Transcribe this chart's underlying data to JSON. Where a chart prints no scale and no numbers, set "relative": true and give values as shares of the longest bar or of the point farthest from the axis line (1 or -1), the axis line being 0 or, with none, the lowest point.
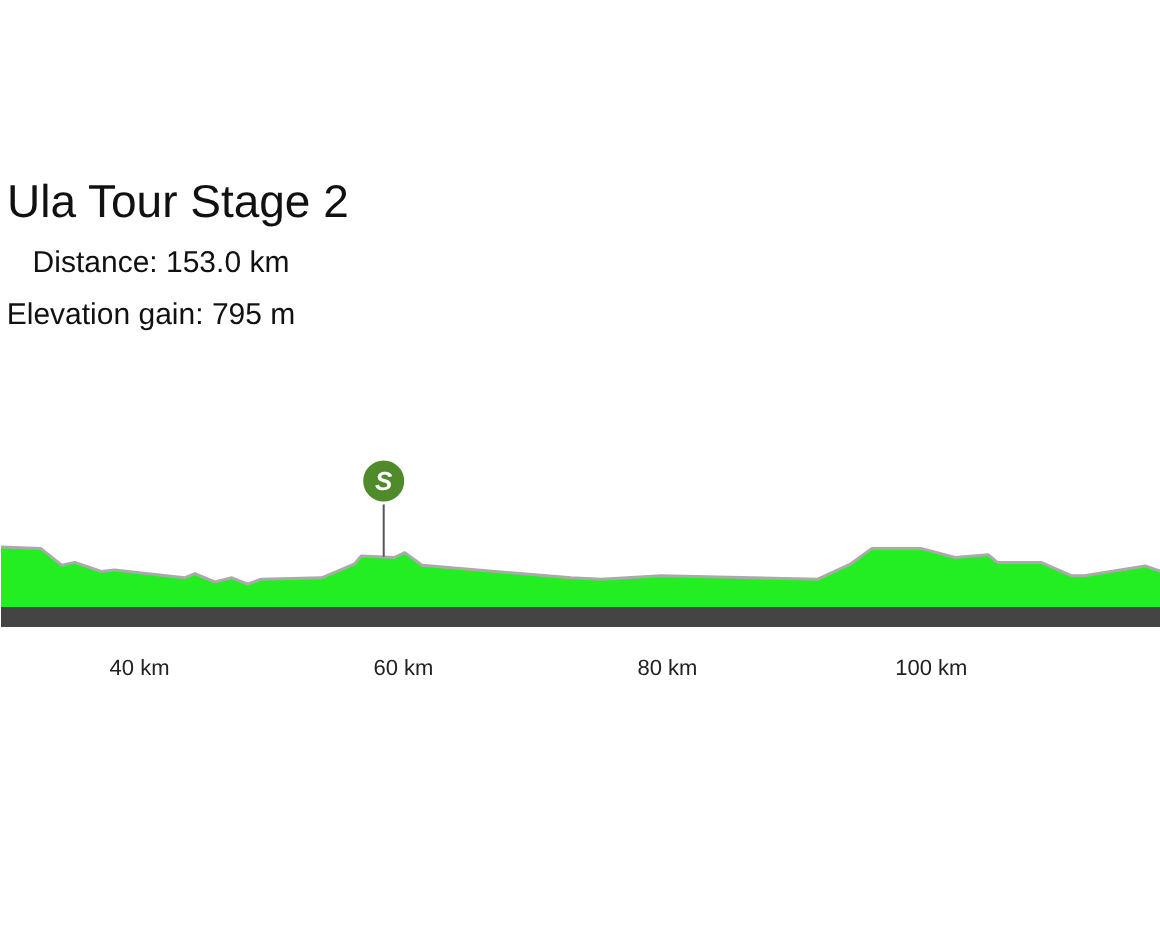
{
  "chart_data": {
    "type": "area",
    "title": "Ula Tour Stage 2",
    "subtitle": "Distance: 153.0 km",
    "annotations": [
      "Elevation gain: 795 m",
      {
        "text": "S",
        "x": 58.5,
        "y": 0.86
      }
    ],
    "relative": true,
    "x": [
      29.5,
      32.5,
      34.1,
      35.1,
      37.1,
      38.1,
      43.4,
      44.2,
      45.7,
      47.0,
      48.2,
      49.2,
      53.8,
      56.3,
      56.8,
      59.3,
      60.1,
      61.4,
      72.7,
      75.0,
      79.5,
      91.4,
      93.9,
      95.5,
      99.2,
      101.8,
      104.3,
      105.0,
      108.3,
      110.6,
      111.6,
      116.2,
      117.4
    ],
    "series": [
      {
        "color": "#22ee22",
        "values": [
          1.0,
          0.98,
          0.74,
          0.78,
          0.65,
          0.67,
          0.56,
          0.62,
          0.5,
          0.56,
          0.47,
          0.54,
          0.56,
          0.76,
          0.87,
          0.85,
          0.92,
          0.74,
          0.56,
          0.54,
          0.59,
          0.54,
          0.76,
          0.98,
          0.98,
          0.85,
          0.89,
          0.78,
          0.78,
          0.59,
          0.59,
          0.73,
          0.65
        ]
      }
    ],
    "xlim": [
      29.5,
      117.4
    ],
    "xticks": [
      {
        "value": 40,
        "label": "40 km"
      },
      {
        "value": 60,
        "label": "60 km"
      },
      {
        "value": 80,
        "label": "80 km"
      },
      {
        "value": 100,
        "label": "100 km"
      }
    ],
    "grid": false
  }
}
